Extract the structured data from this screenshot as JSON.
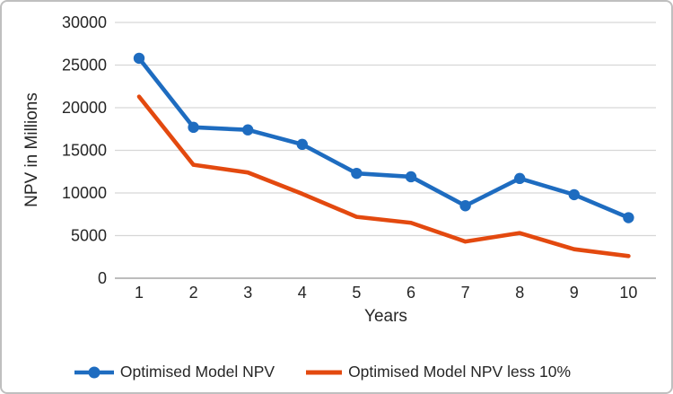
{
  "frame": {
    "background": "#ffffff",
    "border_color": "#bfbfbf"
  },
  "chart_data": {
    "type": "line",
    "title": "",
    "xlabel": "Years",
    "ylabel": "NPV in Millions",
    "x": [
      "1",
      "2",
      "3",
      "4",
      "5",
      "6",
      "7",
      "8",
      "9",
      "10"
    ],
    "y_ticks": [
      0,
      5000,
      10000,
      15000,
      20000,
      25000,
      30000
    ],
    "ylim": [
      0,
      30000
    ],
    "grid": true,
    "legend_position": "bottom",
    "series": [
      {
        "name": "Optimised Model NPV",
        "color": "#1e6cc0",
        "marker": "circle",
        "values": [
          25800,
          17700,
          17400,
          15700,
          12300,
          11900,
          8500,
          11700,
          9800,
          7100
        ]
      },
      {
        "name": "Optimised Model NPV less 10%",
        "color": "#e3490f",
        "marker": "none",
        "values": [
          21300,
          13300,
          12400,
          9900,
          7200,
          6500,
          4300,
          5300,
          3400,
          2600
        ]
      }
    ]
  },
  "styles": {
    "text_color": "#262626",
    "gridline_color": "#d6d6d6",
    "zero_line_color": "#a6a6a6"
  }
}
